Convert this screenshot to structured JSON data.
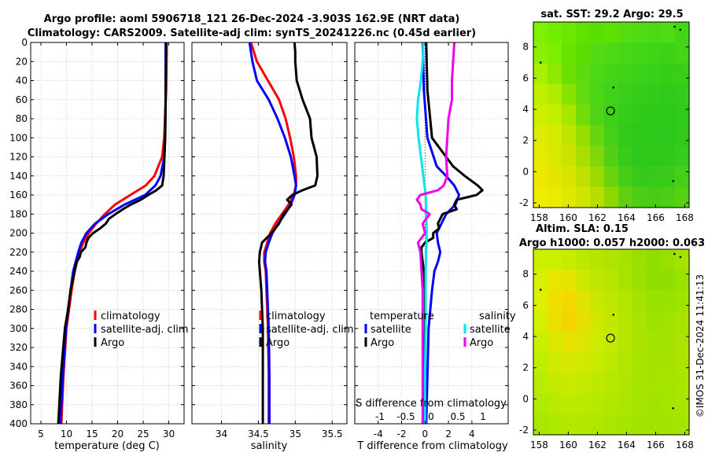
{
  "header": {
    "title_line1": "Argo profile: aoml 5906718_121 26-Dec-2024 -3.903S 162.9E (NRT data)",
    "title_line2": "Climatology: CARS2009. Satellite-adj clim: synTS_20241226.nc (0.45d earlier)"
  },
  "credit": "©IMOS 31-Dec-2024 11:41:13",
  "colors": {
    "climatology": "#ff0000",
    "satellite": "#0000ff",
    "argo": "#000000",
    "sal_satellite": "#00e5ee",
    "sal_argo": "#ee00ee",
    "grid": "#c8c8c8"
  },
  "chart_data": [
    {
      "id": "temperature",
      "type": "line",
      "xlabel": "temperature (deg C)",
      "ylabel": "",
      "xlim": [
        3,
        33
      ],
      "ylim": [
        0,
        400
      ],
      "xticks": [
        5,
        10,
        15,
        20,
        25,
        30
      ],
      "yticks": [
        0,
        20,
        40,
        60,
        80,
        100,
        120,
        140,
        160,
        180,
        200,
        220,
        240,
        260,
        280,
        300,
        320,
        340,
        360,
        380,
        400
      ],
      "legend": {
        "position": "lower-right",
        "entries": [
          "climatology",
          "satellite-adj. clim",
          "Argo"
        ]
      },
      "series": [
        {
          "name": "climatology",
          "color": "#ff0000",
          "depth": [
            0,
            50,
            100,
            120,
            140,
            150,
            160,
            170,
            180,
            190,
            200,
            210,
            220,
            240,
            260,
            300,
            350,
            400
          ],
          "values": [
            29.6,
            29.5,
            29.1,
            28.7,
            27.2,
            25.5,
            22.5,
            19.5,
            17.5,
            15.8,
            14.4,
            13.3,
            12.5,
            11.6,
            11.0,
            10.0,
            9.4,
            9.0
          ]
        },
        {
          "name": "satellite-adj. clim",
          "color": "#0000ff",
          "depth": [
            0,
            50,
            100,
            120,
            140,
            150,
            160,
            170,
            180,
            190,
            200,
            210,
            220,
            240,
            260,
            300,
            350,
            400
          ],
          "values": [
            29.4,
            29.4,
            29.3,
            29.1,
            28.4,
            27.4,
            25.4,
            21.4,
            18.2,
            15.6,
            13.9,
            12.9,
            12.3,
            11.3,
            10.8,
            9.9,
            9.3,
            8.8
          ]
        },
        {
          "name": "Argo",
          "color": "#000000",
          "depth": [
            0,
            50,
            100,
            140,
            150,
            155,
            160,
            165,
            170,
            175,
            180,
            185,
            190,
            195,
            200,
            205,
            210,
            215,
            220,
            225,
            230,
            240,
            260,
            280,
            300,
            350,
            400
          ],
          "values": [
            29.5,
            29.4,
            29.3,
            29.0,
            28.7,
            27.6,
            26.0,
            24.5,
            22.6,
            21.0,
            19.6,
            18.3,
            17.7,
            16.6,
            15.2,
            14.3,
            13.9,
            13.7,
            12.8,
            12.6,
            12.0,
            11.6,
            10.8,
            10.3,
            9.7,
            8.9,
            8.4
          ]
        }
      ]
    },
    {
      "id": "salinity",
      "type": "line",
      "xlabel": "salinity",
      "xlim": [
        33.6,
        35.7
      ],
      "ylim": [
        0,
        400
      ],
      "xticks": [
        34,
        34.5,
        35,
        35.5
      ],
      "legend": {
        "position": "lower-right",
        "entries": [
          "climatology",
          "satellite-adj. clim",
          "Argo"
        ]
      },
      "series": [
        {
          "name": "climatology",
          "color": "#ff0000",
          "depth": [
            0,
            20,
            40,
            60,
            80,
            100,
            120,
            140,
            150,
            160,
            170,
            180,
            190,
            200,
            210,
            220,
            230,
            240,
            260,
            280,
            300,
            350,
            400
          ],
          "values": [
            34.4,
            34.48,
            34.63,
            34.78,
            34.87,
            34.93,
            34.98,
            35.01,
            35.01,
            34.98,
            34.91,
            34.82,
            34.73,
            34.66,
            34.62,
            34.58,
            34.58,
            34.6,
            34.61,
            34.62,
            34.63,
            34.64,
            34.64
          ]
        },
        {
          "name": "satellite-adj. clim",
          "color": "#0000ff",
          "depth": [
            0,
            20,
            40,
            60,
            80,
            100,
            120,
            140,
            150,
            160,
            170,
            180,
            190,
            200,
            210,
            220,
            230,
            240,
            260,
            280,
            300,
            350,
            400
          ],
          "values": [
            34.38,
            34.42,
            34.48,
            34.64,
            34.76,
            34.86,
            34.94,
            34.99,
            35.01,
            34.99,
            34.94,
            34.86,
            34.77,
            34.69,
            34.64,
            34.6,
            34.59,
            34.61,
            34.62,
            34.63,
            34.64,
            34.65,
            34.65
          ]
        },
        {
          "name": "Argo",
          "color": "#000000",
          "depth": [
            0,
            10,
            20,
            40,
            60,
            80,
            100,
            120,
            140,
            150,
            155,
            160,
            165,
            170,
            175,
            180,
            190,
            200,
            210,
            220,
            230,
            240,
            260,
            280,
            300,
            350,
            400
          ],
          "values": [
            34.99,
            35.0,
            35.0,
            35.02,
            35.1,
            35.2,
            35.22,
            35.29,
            35.3,
            35.27,
            35.1,
            34.96,
            34.89,
            34.95,
            34.9,
            34.84,
            34.78,
            34.68,
            34.55,
            34.52,
            34.51,
            34.52,
            34.54,
            34.55,
            34.56,
            34.56,
            34.56
          ]
        }
      ]
    },
    {
      "id": "difference",
      "type": "line",
      "xlabel": "T difference from climatology",
      "xlabel_top": "S difference from climatology",
      "xlim": [
        -6,
        7.1
      ],
      "ylim": [
        0,
        400
      ],
      "xticks": [
        -4,
        -2,
        0,
        2,
        4
      ],
      "xticks_top": [
        "-1",
        "-0.5",
        "0",
        "0.5",
        "1"
      ],
      "legend": {
        "position": "lower",
        "temp_header": "temperature",
        "sal_header": "salinity",
        "temp_entries": [
          "satellite",
          "Argo"
        ],
        "sal_entries": [
          "satellite",
          "Argo"
        ]
      },
      "series": [
        {
          "name": "temperature satellite",
          "color": "#0000ff",
          "depth": [
            0,
            50,
            100,
            130,
            140,
            150,
            160,
            170,
            180,
            190,
            200,
            210,
            220,
            230,
            240,
            260,
            300,
            350,
            400
          ],
          "values": [
            -0.2,
            -0.1,
            0.2,
            1.0,
            1.8,
            2.5,
            2.9,
            2.6,
            1.8,
            1.4,
            1.0,
            1.1,
            1.3,
            1.1,
            0.8,
            0.6,
            0.3,
            0.2,
            0.1
          ]
        },
        {
          "name": "temperature Argo",
          "color": "#000000",
          "depth": [
            0,
            50,
            100,
            130,
            140,
            150,
            155,
            160,
            165,
            170,
            175,
            180,
            190,
            195,
            200,
            205,
            210,
            215,
            220,
            230,
            240,
            260,
            300,
            350,
            400
          ],
          "values": [
            0.1,
            0.2,
            0.6,
            2.4,
            3.4,
            4.5,
            4.9,
            4.4,
            2.7,
            2.5,
            2.7,
            1.5,
            1.1,
            1.2,
            0.7,
            0.7,
            0.0,
            -0.3,
            -0.3,
            -0.2,
            -0.1,
            0.0,
            0.0,
            -0.1,
            -0.2
          ]
        },
        {
          "name": "salinity satellite",
          "color": "#00e5ee",
          "depth": [
            0,
            20,
            40,
            60,
            80,
            100,
            120,
            140,
            160,
            180,
            200,
            220,
            240,
            260,
            280,
            300,
            350,
            400
          ],
          "values": [
            -0.15,
            -0.2,
            -0.35,
            -0.6,
            -0.7,
            -0.55,
            -0.35,
            -0.15,
            0.05,
            0.1,
            0.15,
            0.1,
            0.05,
            0.05,
            0.05,
            0.05,
            0.0,
            0.0
          ]
        },
        {
          "name": "salinity Argo",
          "color": "#ee00ee",
          "depth": [
            0,
            20,
            40,
            60,
            80,
            100,
            120,
            140,
            150,
            155,
            160,
            165,
            170,
            175,
            180,
            190,
            200,
            210,
            220,
            240,
            260,
            280,
            300,
            350,
            400
          ],
          "values": [
            2.5,
            2.4,
            2.3,
            2.3,
            2.0,
            1.9,
            1.8,
            1.9,
            1.6,
            1.1,
            -0.4,
            -0.7,
            -0.4,
            -0.3,
            0.4,
            -0.2,
            0.0,
            -0.6,
            -0.4,
            -0.3,
            -0.2,
            -0.2,
            -0.2,
            -0.2,
            -0.2
          ]
        }
      ]
    },
    {
      "id": "sst_map",
      "type": "heatmap",
      "title": "sat. SST: 29.2 Argo: 29.5",
      "xlim": [
        157.6,
        168.3
      ],
      "ylim": [
        -2.3,
        9.6
      ],
      "xticks": [
        158,
        160,
        162,
        164,
        166,
        168
      ],
      "yticks": [
        -2,
        0,
        2,
        4,
        6,
        8
      ],
      "marker": {
        "lon": 162.9,
        "lat": 3.9
      },
      "cell_colors": {
        "rows": [
          [
            "#7ef000",
            "#74ee00",
            "#6ae800",
            "#60e200",
            "#59df00",
            "#5ee000",
            "#55dd10",
            "#50dc12",
            "#4cda12",
            "#50dc14",
            "#40d814"
          ],
          [
            "#88f000",
            "#7cee00",
            "#66e400",
            "#5ade00",
            "#55db14",
            "#4fd914",
            "#48d714",
            "#44d616",
            "#40d417",
            "#3cd316",
            "#45d514"
          ],
          [
            "#a6f000",
            "#8ee800",
            "#6ae000",
            "#5adc10",
            "#4cd816",
            "#46d516",
            "#40d317",
            "#3cd218",
            "#38d018",
            "#36cf18",
            "#38d017"
          ],
          [
            "#bff000",
            "#b0ec00",
            "#88e200",
            "#62da10",
            "#4cd616",
            "#40d218",
            "#3ad019",
            "#36ce19",
            "#33cc1a",
            "#30cb1a",
            "#32cc1a"
          ],
          [
            "#cdf000",
            "#c4ee00",
            "#a8e600",
            "#72dc08",
            "#50d516",
            "#3cd019",
            "#34cd1a",
            "#30cb1a",
            "#2ec91b",
            "#2cc91b",
            "#30cb1a"
          ],
          [
            "#dceb00",
            "#d4ea00",
            "#bee600",
            "#96de00",
            "#66d610",
            "#44cf18",
            "#32ca1b",
            "#2ec81b",
            "#2cc81b",
            "#2cc81b",
            "#30ca1b"
          ],
          [
            "#e6ea00",
            "#dae800",
            "#cae400",
            "#aade00",
            "#80d808",
            "#52d016",
            "#38cb1a",
            "#30c81b",
            "#2ec81b",
            "#30c91b",
            "#38cc1a"
          ],
          [
            "#eee800",
            "#e4e600",
            "#d6e400",
            "#c0e000",
            "#9cda00",
            "#6ad40e",
            "#46cd18",
            "#38ca1a",
            "#36ca1a",
            "#3acb1a",
            "#46cf18"
          ],
          [
            "#f0ec00",
            "#ebea00",
            "#e0e800",
            "#d0e400",
            "#b6de00",
            "#8ed800",
            "#60d010",
            "#4ccd16",
            "#48cc16",
            "#4ccd16",
            "#58d014"
          ]
        ]
      }
    },
    {
      "id": "sla_map",
      "type": "heatmap",
      "title_line1": "Altim. SLA: 0.15",
      "title_line2": "Argo h1000: 0.057 h2000: 0.063",
      "xlim": [
        157.6,
        168.3
      ],
      "ylim": [
        -2.3,
        9.6
      ],
      "xticks": [
        158,
        160,
        162,
        164,
        166,
        168
      ],
      "yticks": [
        -2,
        0,
        2,
        4,
        6,
        8
      ],
      "marker": {
        "lon": 162.9,
        "lat": 3.9
      },
      "cell_colors": {
        "rows": [
          [
            "#cdf000",
            "#ccef00",
            "#c6ec00",
            "#bde800",
            "#b6e600",
            "#aee400",
            "#a6e300",
            "#98e000",
            "#8ede00",
            "#98e000",
            "#a4e200"
          ],
          [
            "#d6f000",
            "#e6e600",
            "#e6e400",
            "#cfe800",
            "#bee600",
            "#b6e500",
            "#a8e300",
            "#9ae100",
            "#8ede00",
            "#90df00",
            "#9ae100"
          ],
          [
            "#dcf000",
            "#f0e000",
            "#f4d800",
            "#e2e200",
            "#c8e800",
            "#bee700",
            "#b2e500",
            "#a4e300",
            "#98e100",
            "#98e100",
            "#a2e200"
          ],
          [
            "#d2f000",
            "#ecde00",
            "#f4d400",
            "#e6e000",
            "#d0e800",
            "#c2e800",
            "#b6e600",
            "#a8e400",
            "#9ee200",
            "#a0e200",
            "#a8e400"
          ],
          [
            "#c8ef00",
            "#dae800",
            "#e6e200",
            "#dce600",
            "#cdea00",
            "#c0e800",
            "#b4e600",
            "#aae400",
            "#a2e300",
            "#a4e300",
            "#aae400"
          ],
          [
            "#c0ee00",
            "#cdea00",
            "#d6e800",
            "#d0e900",
            "#c6ea00",
            "#bce800",
            "#b2e600",
            "#aae500",
            "#a4e400",
            "#a6e400",
            "#ace500"
          ],
          [
            "#b8ec00",
            "#c2ea00",
            "#c8ea00",
            "#c4ea00",
            "#bee900",
            "#b6e700",
            "#aee600",
            "#a8e500",
            "#a4e400",
            "#a6e500",
            "#aae500"
          ],
          [
            "#b0ea00",
            "#b8e900",
            "#bee900",
            "#bce900",
            "#b6e800",
            "#b0e700",
            "#aae600",
            "#a6e500",
            "#a2e400",
            "#a6e500",
            "#a8e500"
          ],
          [
            "#a8e800",
            "#aee800",
            "#b4e800",
            "#b2e800",
            "#aee700",
            "#aae600",
            "#a6e500",
            "#a2e500",
            "#a0e400",
            "#a4e500",
            "#a6e500"
          ]
        ]
      }
    }
  ]
}
